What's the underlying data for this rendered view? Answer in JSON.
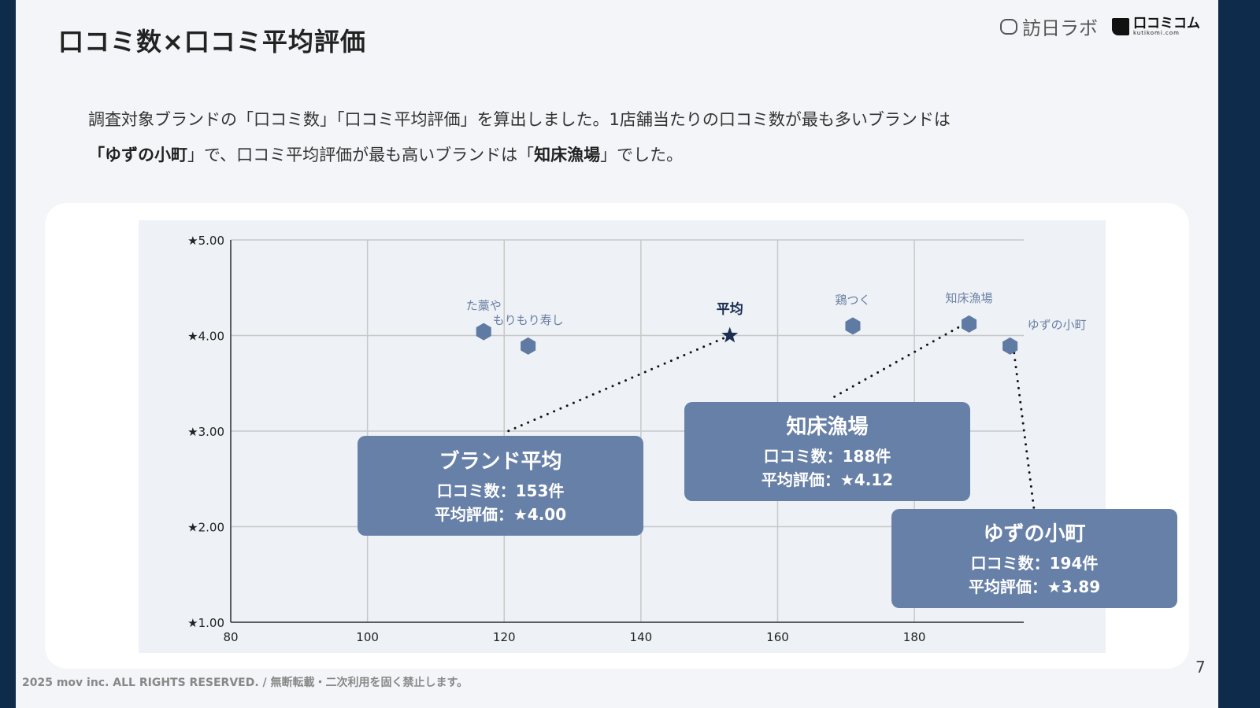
{
  "title": "口コミ数×口コミ平均評価",
  "logos": {
    "left": "訪日ラボ",
    "right": "口コミコム",
    "right_sub": "kutikomi.com"
  },
  "description": {
    "line1": "調査対象ブランドの「口コミ数」「口コミ平均評価」を算出しました。1店舗当たりの口コミ数が最も多いブランドは",
    "line2_pre": "「",
    "line2_b1": "ゆずの小町",
    "line2_mid": "」で、口コミ平均評価が最も高いブランドは「",
    "line2_b2": "知床漁場",
    "line2_post": "」でした。"
  },
  "chart_data": {
    "type": "scatter",
    "xlim": [
      80,
      196
    ],
    "ylim": [
      1,
      5
    ],
    "x_ticks": [
      "80",
      "100",
      "120",
      "140",
      "160",
      "180"
    ],
    "x_tick_values": [
      80,
      100,
      120,
      140,
      160,
      180
    ],
    "y_ticks": [
      "★1.00",
      "★2.00",
      "★3.00",
      "★4.00",
      "★5.00"
    ],
    "y_tick_values": [
      1,
      2,
      3,
      4,
      5
    ],
    "grid": true,
    "marker_color": "#5f7aa3",
    "average_color": "#1b2f52",
    "points": [
      {
        "label": "た藁や",
        "x": 117,
        "y": 4.04,
        "marker": "hexagon"
      },
      {
        "label": "もりもり寿し",
        "x": 123.5,
        "y": 3.89,
        "marker": "hexagon"
      },
      {
        "label": "平均",
        "x": 153,
        "y": 4.0,
        "marker": "star"
      },
      {
        "label": "鶏つく",
        "x": 171,
        "y": 4.1,
        "marker": "hexagon"
      },
      {
        "label": "知床漁場",
        "x": 188,
        "y": 4.12,
        "marker": "hexagon"
      },
      {
        "label": "ゆずの小町",
        "x": 194,
        "y": 3.89,
        "marker": "hexagon"
      }
    ]
  },
  "callouts": [
    {
      "title": "ブランド平均",
      "count": "口コミ数：153件",
      "rating": "平均評価：★4.00"
    },
    {
      "title": "知床漁場",
      "count": "口コミ数：188件",
      "rating": "平均評価：★4.12"
    },
    {
      "title": "ゆずの小町",
      "count": "口コミ数：194件",
      "rating": "平均評価：★3.89"
    }
  ],
  "footer": "2025 mov inc. ALL RIGHTS RESERVED. / 無断転載・二次利用を固く禁止します。",
  "page_number": "7"
}
